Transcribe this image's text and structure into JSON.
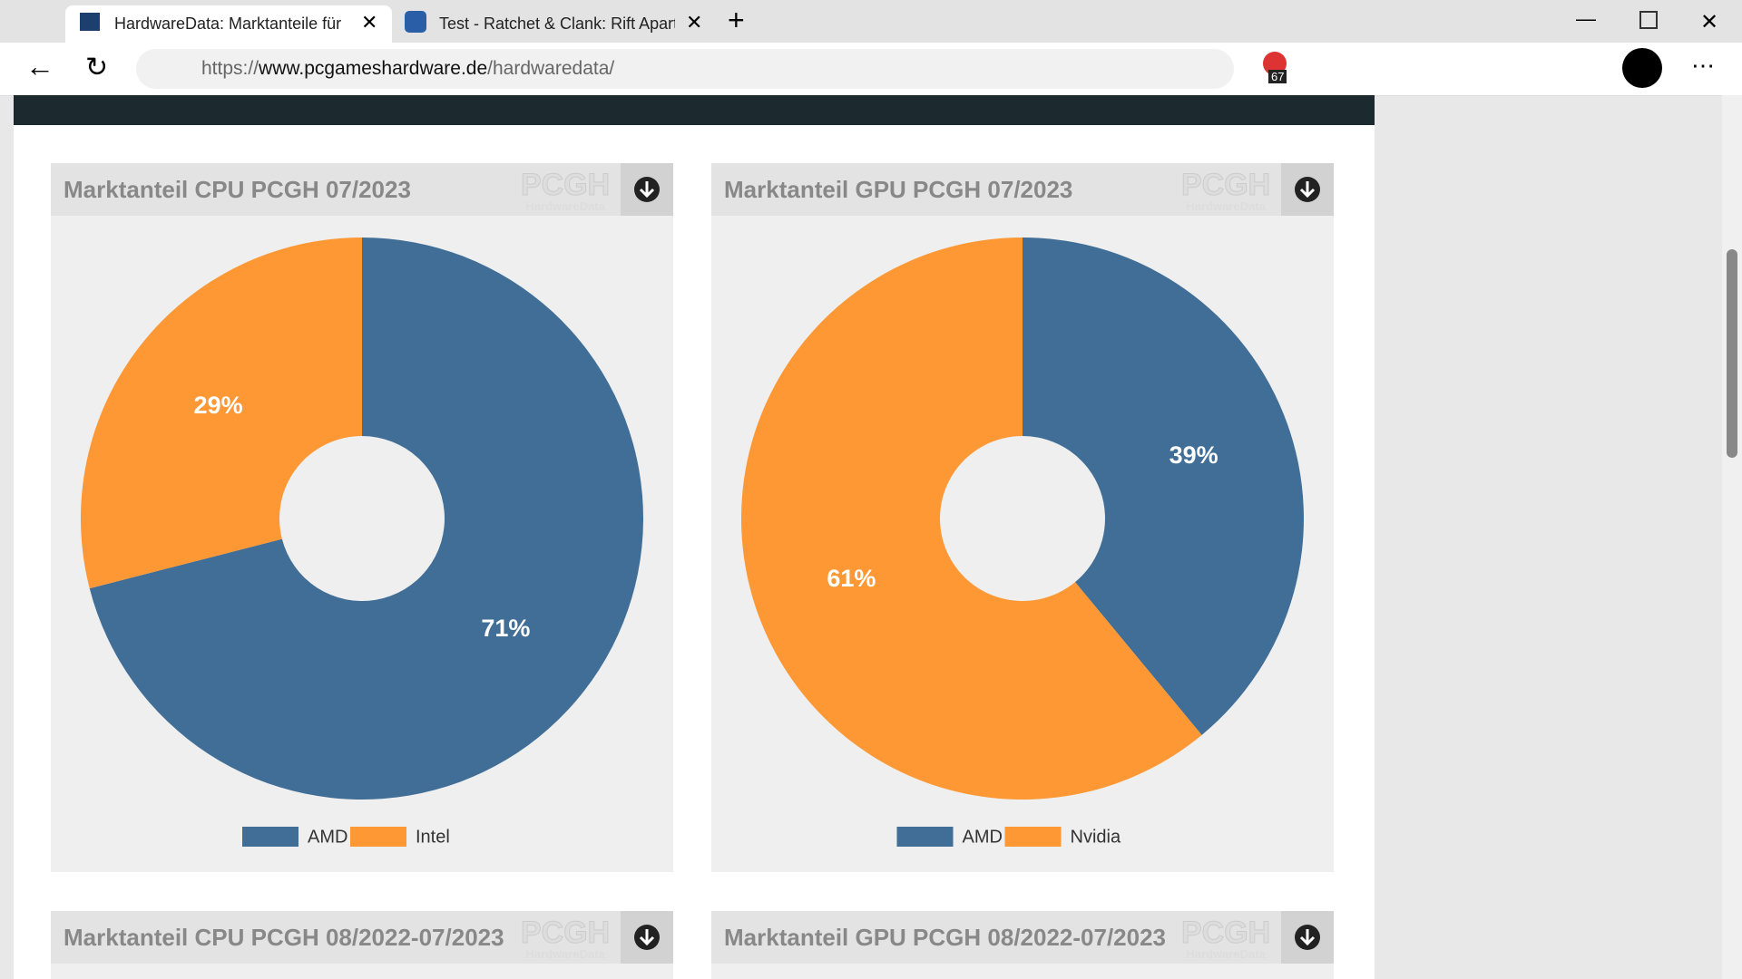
{
  "browser": {
    "tabs": [
      "HardwareData: Marktanteile für C",
      "Test - Ratchet & Clank: Rift Apart"
    ],
    "url": {
      "scheme": "https://",
      "host": "www.pcgameshardware.de",
      "path": "/hardwaredata/"
    },
    "badge": "67"
  },
  "logo": {
    "name": "PCGH",
    "sub": "HardwareData"
  },
  "chart_data": [
    {
      "type": "pie",
      "title": "Marktanteil CPU PCGH 07/2023",
      "categories": [
        "AMD",
        "Intel"
      ],
      "values": [
        71,
        29
      ],
      "value_labels": [
        "71%",
        "29%"
      ],
      "colors": [
        "#406e96",
        "#fd9834"
      ]
    },
    {
      "type": "pie",
      "title": "Marktanteil GPU PCGH 07/2023",
      "categories": [
        "AMD",
        "Nvidia"
      ],
      "values": [
        39,
        61
      ],
      "value_labels": [
        "39%",
        "61%"
      ],
      "colors": [
        "#406e96",
        "#fd9834"
      ]
    }
  ],
  "more_panels": [
    "Marktanteil CPU PCGH 08/2022-07/2023",
    "Marktanteil GPU PCGH 08/2022-07/2023"
  ]
}
